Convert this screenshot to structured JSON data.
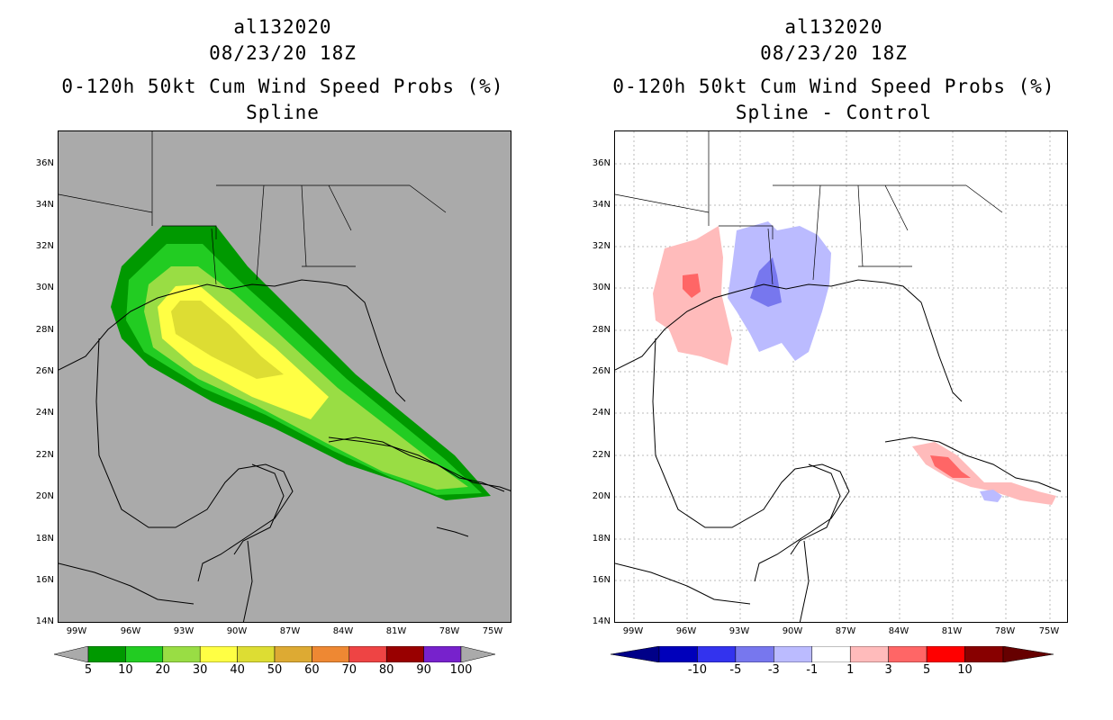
{
  "left": {
    "title": [
      "al132020",
      "08/23/20 18Z",
      "0-120h 50kt Cum Wind Speed Probs (%)",
      "Spline"
    ],
    "colorbar": {
      "colors": [
        "#009900",
        "#22cc22",
        "#99dd44",
        "#ffff44",
        "#dddd33",
        "#ddaa33",
        "#ee8833",
        "#ee4444",
        "#990000",
        "#7722cc"
      ],
      "labels": [
        "5",
        "10",
        "20",
        "30",
        "40",
        "50",
        "60",
        "70",
        "80",
        "90",
        "100"
      ]
    }
  },
  "right": {
    "title": [
      "al132020",
      "08/23/20 18Z",
      "0-120h 50kt Cum Wind Speed Probs (%)",
      "Spline - Control"
    ],
    "colorbar": {
      "colors": [
        "#0000bb",
        "#3333ee",
        "#7777ee",
        "#bbbbff",
        "#ffffff",
        "#ffbbbb",
        "#ff6666",
        "#ff0000",
        "#880000"
      ],
      "labels": [
        "-10",
        "-5",
        "-3",
        "-1",
        "1",
        "3",
        "5",
        "10"
      ]
    }
  },
  "axes": {
    "lat_labels": [
      "36N",
      "34N",
      "32N",
      "30N",
      "28N",
      "26N",
      "24N",
      "22N",
      "20N",
      "18N",
      "16N",
      "14N"
    ],
    "lon_labels": [
      "99W",
      "96W",
      "93W",
      "90W",
      "87W",
      "84W",
      "81W",
      "78W",
      "75W"
    ]
  },
  "colors": {
    "ocean_left": "#aaaaaa",
    "land_line": "#000000",
    "grid": "#999999"
  }
}
